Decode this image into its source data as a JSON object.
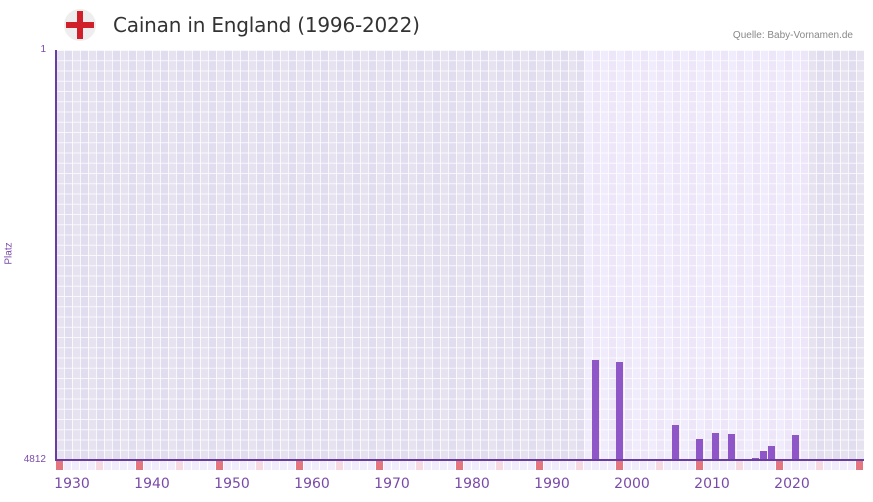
{
  "header": {
    "flag_icon": "england-flag-icon",
    "title": "Cainan in England (1996-2022)",
    "source": "Quelle: Baby-Vornamen.de"
  },
  "colors": {
    "bar": "#8f56c8",
    "axis": "#6a3ea0",
    "bg_outside": "#e4e0ef",
    "bg_inside": "#efeaf9",
    "decade_marker": "#e57680",
    "half_decade_marker": "#f6d8e0"
  },
  "chart_data": {
    "type": "bar",
    "title": "Cainan in England (1996-2022)",
    "xlabel": "",
    "ylabel": "Platz",
    "y_inverted": true,
    "ylim": [
      1,
      4812
    ],
    "y_ticks": [
      "1",
      "4812"
    ],
    "xlim": [
      1929,
      2029
    ],
    "x_ticks": [
      "1930",
      "1940",
      "1950",
      "1960",
      "1970",
      "1980",
      "1990",
      "2000",
      "2010",
      "2020"
    ],
    "highlight_range": [
      1995,
      2022
    ],
    "grid": true,
    "legend": null,
    "categories": [
      "1996",
      "1999",
      "2006",
      "2009",
      "2011",
      "2013",
      "2016",
      "2017",
      "2018",
      "2021"
    ],
    "values": [
      3639,
      3662,
      4401,
      4566,
      4495,
      4507,
      4794,
      4706,
      4648,
      4519
    ]
  }
}
